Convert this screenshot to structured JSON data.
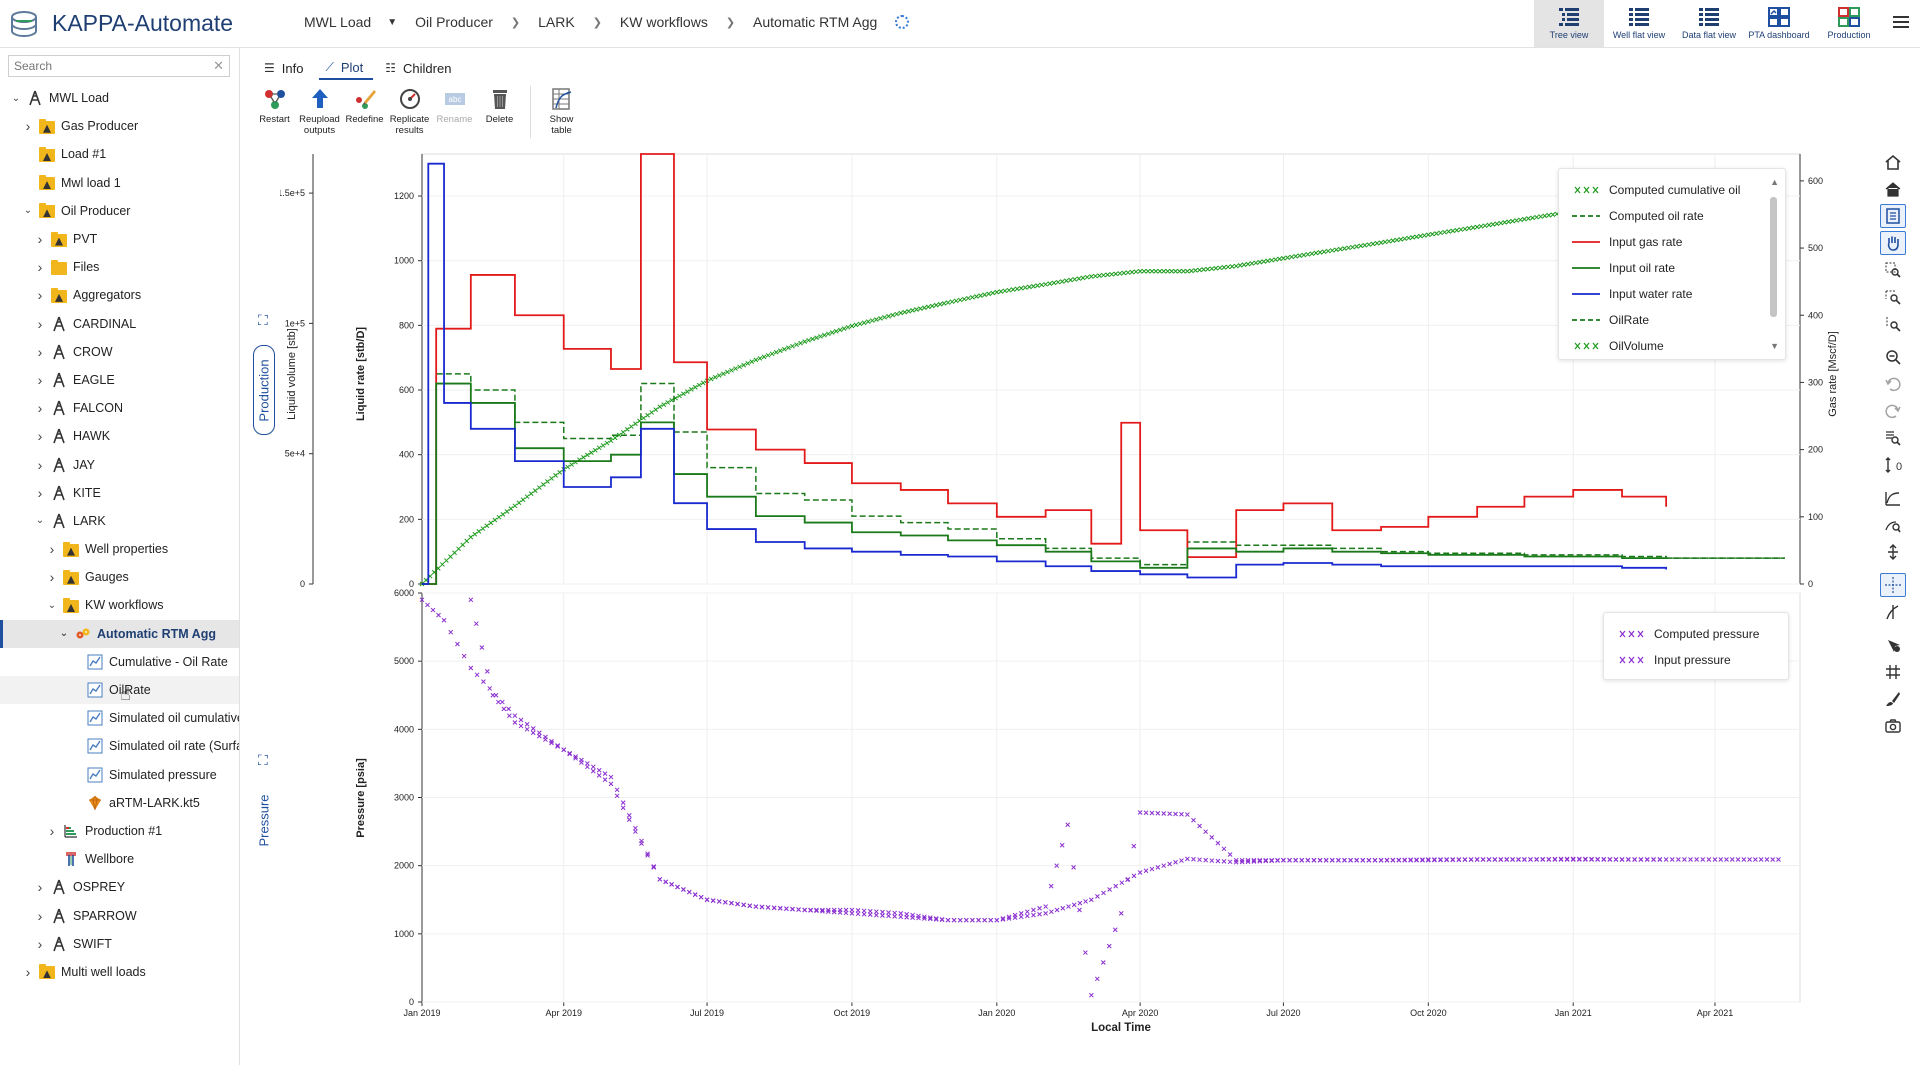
{
  "app": {
    "title": "KAPPA-Automate"
  },
  "breadcrumb": [
    "MWL Load",
    "Oil Producer",
    "LARK",
    "KW workflows",
    "Automatic RTM Agg"
  ],
  "views": [
    {
      "label": "Tree view",
      "icon": "tree-view-icon",
      "active": true
    },
    {
      "label": "Well flat view",
      "icon": "well-flat-view-icon"
    },
    {
      "label": "Data flat view",
      "icon": "data-flat-view-icon"
    },
    {
      "label": "PTA dashboard",
      "icon": "pta-dashboard-icon"
    },
    {
      "label": "Production",
      "icon": "production-dashboard-icon"
    }
  ],
  "search": {
    "placeholder": "Search",
    "value": ""
  },
  "tree": [
    {
      "label": "MWL Load",
      "depth": 0,
      "tw": "expanded",
      "icon": "well"
    },
    {
      "label": "Gas Producer",
      "depth": 1,
      "tw": "collapsed",
      "icon": "folder-dark"
    },
    {
      "label": "Load #1",
      "depth": 1,
      "tw": "none",
      "icon": "folder-dark"
    },
    {
      "label": "Mwl load 1",
      "depth": 1,
      "tw": "none",
      "icon": "folder-dark"
    },
    {
      "label": "Oil Producer",
      "depth": 1,
      "tw": "expanded",
      "icon": "folder-dark"
    },
    {
      "label": "PVT",
      "depth": 2,
      "tw": "collapsed",
      "icon": "folder-dark"
    },
    {
      "label": "Files",
      "depth": 2,
      "tw": "collapsed",
      "icon": "folder"
    },
    {
      "label": "Aggregators",
      "depth": 2,
      "tw": "collapsed",
      "icon": "folder-dark"
    },
    {
      "label": "CARDINAL",
      "depth": 2,
      "tw": "collapsed",
      "icon": "well"
    },
    {
      "label": "CROW",
      "depth": 2,
      "tw": "collapsed",
      "icon": "well"
    },
    {
      "label": "EAGLE",
      "depth": 2,
      "tw": "collapsed",
      "icon": "well"
    },
    {
      "label": "FALCON",
      "depth": 2,
      "tw": "collapsed",
      "icon": "well"
    },
    {
      "label": "HAWK",
      "depth": 2,
      "tw": "collapsed",
      "icon": "well"
    },
    {
      "label": "JAY",
      "depth": 2,
      "tw": "collapsed",
      "icon": "well"
    },
    {
      "label": "KITE",
      "depth": 2,
      "tw": "collapsed",
      "icon": "well"
    },
    {
      "label": "LARK",
      "depth": 2,
      "tw": "expanded",
      "icon": "well"
    },
    {
      "label": "Well properties",
      "depth": 3,
      "tw": "collapsed",
      "icon": "folder-dark"
    },
    {
      "label": "Gauges",
      "depth": 3,
      "tw": "collapsed",
      "icon": "folder-dark"
    },
    {
      "label": "KW workflows",
      "depth": 3,
      "tw": "expanded",
      "icon": "folder-dark"
    },
    {
      "label": "Automatic RTM Agg",
      "depth": 4,
      "tw": "expanded",
      "icon": "workflow",
      "selected": true
    },
    {
      "label": "Cumulative - Oil Rate",
      "depth": 5,
      "tw": "none",
      "icon": "chart"
    },
    {
      "label": "OilRate",
      "depth": 5,
      "tw": "none",
      "icon": "chart",
      "hover": true
    },
    {
      "label": "Simulated oil cumulative",
      "depth": 5,
      "tw": "none",
      "icon": "chart"
    },
    {
      "label": "Simulated oil rate (Surfac",
      "depth": 5,
      "tw": "none",
      "icon": "chart"
    },
    {
      "label": "Simulated pressure",
      "depth": 5,
      "tw": "none",
      "icon": "chart"
    },
    {
      "label": "aRTM-LARK.kt5",
      "depth": 5,
      "tw": "none",
      "icon": "kt5"
    },
    {
      "label": "Production #1",
      "depth": 3,
      "tw": "collapsed",
      "icon": "production"
    },
    {
      "label": "Wellbore",
      "depth": 3,
      "tw": "none",
      "icon": "wellbore"
    },
    {
      "label": "OSPREY",
      "depth": 2,
      "tw": "collapsed",
      "icon": "well"
    },
    {
      "label": "SPARROW",
      "depth": 2,
      "tw": "collapsed",
      "icon": "well"
    },
    {
      "label": "SWIFT",
      "depth": 2,
      "tw": "collapsed",
      "icon": "well"
    },
    {
      "label": "Multi well loads",
      "depth": 1,
      "tw": "collapsed",
      "icon": "folder-dark"
    }
  ],
  "tabs": [
    {
      "label": "Info",
      "icon": "info-icon"
    },
    {
      "label": "Plot",
      "icon": "plot-icon",
      "active": true
    },
    {
      "label": "Children",
      "icon": "children-icon"
    }
  ],
  "toolbar": [
    {
      "label": "Restart",
      "icon": "restart-icon"
    },
    {
      "label": "Reupload outputs",
      "icon": "reupload-icon"
    },
    {
      "label": "Redefine",
      "icon": "redefine-icon"
    },
    {
      "label": "Replicate results",
      "icon": "replicate-icon"
    },
    {
      "label": "Rename",
      "icon": "rename-icon",
      "disabled": true
    },
    {
      "label": "Delete",
      "icon": "delete-icon"
    },
    {
      "label": "Show table",
      "icon": "show-table-icon"
    }
  ],
  "panes": {
    "top": "Production",
    "bottom": "Pressure"
  },
  "chart_data": [
    {
      "type": "line",
      "xlabel": "Local Time",
      "x_ticks": [
        "Jan 2019",
        "Apr 2019",
        "Jul 2019",
        "Oct 2019",
        "Jan 2020",
        "Apr 2020",
        "Jul 2020",
        "Oct 2020",
        "Jan 2021",
        "Apr 2021"
      ],
      "y_axes": [
        {
          "label": "Liquid volume [stb]",
          "ticks": [
            "0",
            "5e+4",
            "1e+5",
            "1.5e+5"
          ]
        },
        {
          "label": "Liquid rate [stb/D]",
          "ticks": [
            "0",
            "200",
            "400",
            "600",
            "800",
            "1000",
            "1200"
          ],
          "ylim": [
            0,
            1330
          ]
        },
        {
          "label": "Gas rate [Mscf/D]",
          "ticks": [
            "0",
            "100",
            "200",
            "300",
            "400",
            "500",
            "600"
          ],
          "ylim": [
            0,
            640
          ]
        }
      ],
      "series": [
        {
          "name": "Computed cumulative oil",
          "color": "#1a9a1a",
          "style": "cross",
          "axis": "Liquid volume [stb]",
          "x": [
            "2019-01-01",
            "2019-02-01",
            "2019-03-01",
            "2019-04-01",
            "2019-05-01",
            "2019-06-01",
            "2019-07-01",
            "2019-08-01",
            "2019-09-01",
            "2019-10-01",
            "2019-11-01",
            "2019-12-01",
            "2020-01-01",
            "2020-02-01",
            "2020-03-01",
            "2020-04-01",
            "2020-05-01",
            "2020-06-01",
            "2020-07-01",
            "2020-08-01",
            "2020-09-01",
            "2020-10-01",
            "2020-11-01",
            "2020-12-01",
            "2021-01-01",
            "2021-02-01",
            "2021-03-01",
            "2021-04-01",
            "2021-05-01"
          ],
          "values": [
            0,
            18000,
            30000,
            44000,
            55000,
            68000,
            78000,
            86000,
            93000,
            99000,
            104000,
            108000,
            112000,
            115000,
            118000,
            120000,
            120000,
            122000,
            125000,
            128000,
            131000,
            134000,
            137000,
            140000,
            143000,
            146000,
            148000,
            150000,
            152000
          ]
        },
        {
          "name": "Computed oil rate",
          "color": "#1a7a1a",
          "style": "dash",
          "axis": "Liquid rate [stb/D]",
          "x": [
            "2019-01-01",
            "2019-01-10",
            "2019-02-01",
            "2019-03-01",
            "2019-04-01",
            "2019-05-01",
            "2019-05-20",
            "2019-06-10",
            "2019-07-01",
            "2019-08-01",
            "2019-09-01",
            "2019-10-01",
            "2019-11-01",
            "2019-12-01",
            "2020-01-01",
            "2020-02-01",
            "2020-03-01",
            "2020-04-01",
            "2020-05-01",
            "2020-06-01",
            "2020-07-01",
            "2020-08-01",
            "2020-09-01",
            "2020-10-01",
            "2020-11-01",
            "2020-12-01",
            "2021-01-01",
            "2021-02-01",
            "2021-03-01",
            "2021-04-01",
            "2021-05-15"
          ],
          "values": [
            0,
            650,
            600,
            500,
            450,
            460,
            620,
            470,
            360,
            280,
            260,
            210,
            190,
            170,
            140,
            110,
            80,
            60,
            130,
            120,
            120,
            110,
            100,
            95,
            95,
            90,
            90,
            85,
            80,
            80,
            78
          ]
        },
        {
          "name": "Input gas rate",
          "color": "#e31a1a",
          "style": "line",
          "axis": "Gas rate [Mscf/D]",
          "x": [
            "2019-01-01",
            "2019-01-10",
            "2019-02-01",
            "2019-03-01",
            "2019-04-01",
            "2019-05-01",
            "2019-05-20",
            "2019-06-10",
            "2019-07-01",
            "2019-08-01",
            "2019-09-01",
            "2019-10-01",
            "2019-11-01",
            "2019-12-01",
            "2020-01-01",
            "2020-02-01",
            "2020-03-01",
            "2020-03-20",
            "2020-04-01",
            "2020-05-01",
            "2020-06-01",
            "2020-07-01",
            "2020-08-01",
            "2020-09-01",
            "2020-10-01",
            "2020-11-01",
            "2020-12-01",
            "2021-01-01",
            "2021-02-01",
            "2021-03-01"
          ],
          "values": [
            0,
            380,
            460,
            400,
            350,
            320,
            640,
            330,
            230,
            200,
            180,
            150,
            140,
            120,
            100,
            110,
            60,
            240,
            80,
            40,
            110,
            120,
            80,
            85,
            100,
            115,
            130,
            140,
            130,
            115
          ]
        },
        {
          "name": "Input oil rate",
          "color": "#1a7a1a",
          "style": "line",
          "axis": "Liquid rate [stb/D]",
          "x": [
            "2019-01-01",
            "2019-01-10",
            "2019-02-01",
            "2019-03-01",
            "2019-04-01",
            "2019-05-01",
            "2019-05-20",
            "2019-06-10",
            "2019-07-01",
            "2019-08-01",
            "2019-09-01",
            "2019-10-01",
            "2019-11-01",
            "2019-12-01",
            "2020-01-01",
            "2020-02-01",
            "2020-03-01",
            "2020-04-01",
            "2020-05-01",
            "2020-06-01",
            "2020-07-01",
            "2020-08-01",
            "2020-09-01",
            "2020-10-01",
            "2020-11-01",
            "2020-12-01",
            "2021-01-01",
            "2021-02-01",
            "2021-03-01"
          ],
          "values": [
            0,
            620,
            560,
            420,
            380,
            400,
            500,
            340,
            270,
            210,
            190,
            160,
            150,
            135,
            120,
            100,
            70,
            50,
            110,
            100,
            110,
            100,
            95,
            90,
            90,
            85,
            85,
            80,
            78
          ]
        },
        {
          "name": "Input water rate",
          "color": "#1a2ad0",
          "style": "line",
          "axis": "Liquid rate [stb/D]",
          "x": [
            "2019-01-01",
            "2019-01-05",
            "2019-01-15",
            "2019-02-01",
            "2019-03-01",
            "2019-04-01",
            "2019-05-01",
            "2019-05-20",
            "2019-06-10",
            "2019-07-01",
            "2019-08-01",
            "2019-09-01",
            "2019-10-01",
            "2019-11-01",
            "2019-12-01",
            "2020-01-01",
            "2020-02-01",
            "2020-03-01",
            "2020-04-01",
            "2020-05-01",
            "2020-06-01",
            "2020-07-01",
            "2020-08-01",
            "2020-09-01",
            "2020-10-01",
            "2020-11-01",
            "2020-12-01",
            "2021-01-01",
            "2021-02-01",
            "2021-03-01"
          ],
          "values": [
            0,
            1300,
            560,
            480,
            380,
            300,
            330,
            480,
            250,
            170,
            130,
            110,
            100,
            90,
            85,
            70,
            55,
            40,
            30,
            20,
            60,
            65,
            60,
            55,
            55,
            55,
            55,
            55,
            50,
            45
          ]
        },
        {
          "name": "OilRate",
          "color": "#1a7a1a",
          "style": "dash",
          "axis": "Liquid rate [stb/D]",
          "x": [
            "2021-03-01",
            "2021-05-15"
          ],
          "values": [
            80,
            78
          ]
        },
        {
          "name": "OilVolume",
          "color": "#1a9a1a",
          "style": "cross",
          "axis": "Liquid volume [stb]",
          "x": [
            "2021-03-01",
            "2021-05-15"
          ],
          "values": [
            148000,
            153000
          ]
        }
      ]
    },
    {
      "type": "scatter",
      "xlabel": "Local Time",
      "ylabel": "Pressure [psia]",
      "x_ticks": [
        "Jan 2019",
        "Apr 2019",
        "Jul 2019",
        "Oct 2019",
        "Jan 2020",
        "Apr 2020",
        "Jul 2020",
        "Oct 2020",
        "Jan 2021",
        "Apr 2021"
      ],
      "y_ticks": [
        "0",
        "1000",
        "2000",
        "3000",
        "4000",
        "5000",
        "6000"
      ],
      "ylim": [
        0,
        6000
      ],
      "series": [
        {
          "name": "Computed pressure",
          "color": "#8a2ed0",
          "style": "cross",
          "x": [
            "2019-01-01",
            "2019-01-15",
            "2019-02-01",
            "2019-03-01",
            "2019-04-01",
            "2019-05-01",
            "2019-06-01",
            "2019-07-01",
            "2019-08-01",
            "2019-09-01",
            "2019-10-01",
            "2019-11-01",
            "2019-12-01",
            "2020-01-01",
            "2020-02-01",
            "2020-03-01",
            "2020-04-01",
            "2020-05-01",
            "2020-06-01",
            "2020-07-01",
            "2020-08-01",
            "2020-09-01",
            "2020-10-01",
            "2020-11-01",
            "2020-12-01",
            "2021-01-01",
            "2021-02-01",
            "2021-03-01",
            "2021-04-01",
            "2021-05-15"
          ],
          "values": [
            5900,
            5600,
            4900,
            4200,
            3700,
            3200,
            1800,
            1500,
            1400,
            1350,
            1300,
            1250,
            1200,
            1200,
            1300,
            1500,
            1900,
            2100,
            2050,
            2080,
            2080,
            2080,
            2080,
            2090,
            2090,
            2090,
            2090,
            2090,
            2090,
            2090
          ]
        },
        {
          "name": "Input pressure",
          "color": "#8a2ed0",
          "style": "cross",
          "x": [
            "2019-02-01",
            "2019-02-15",
            "2019-03-01",
            "2019-04-01",
            "2019-05-01",
            "2019-06-01",
            "2019-07-01",
            "2019-08-01",
            "2019-09-01",
            "2019-10-01",
            "2019-11-01",
            "2019-12-01",
            "2020-01-01",
            "2020-02-01",
            "2020-02-15",
            "2020-03-01",
            "2020-03-20",
            "2020-04-01",
            "2020-05-01",
            "2020-06-01",
            "2020-07-01",
            "2020-08-01",
            "2020-09-01",
            "2020-10-01",
            "2020-11-01",
            "2020-12-01",
            "2021-01-01",
            "2021-02-01",
            "2021-03-01"
          ],
          "values": [
            5900,
            4500,
            4100,
            3700,
            3300,
            1800,
            1500,
            1400,
            1350,
            1350,
            1300,
            1200,
            1200,
            1400,
            2600,
            100,
            1300,
            2780,
            2750,
            2080,
            2080,
            2080,
            2080,
            2090,
            2090,
            2090,
            2100,
            2090,
            2090
          ]
        }
      ]
    }
  ]
}
